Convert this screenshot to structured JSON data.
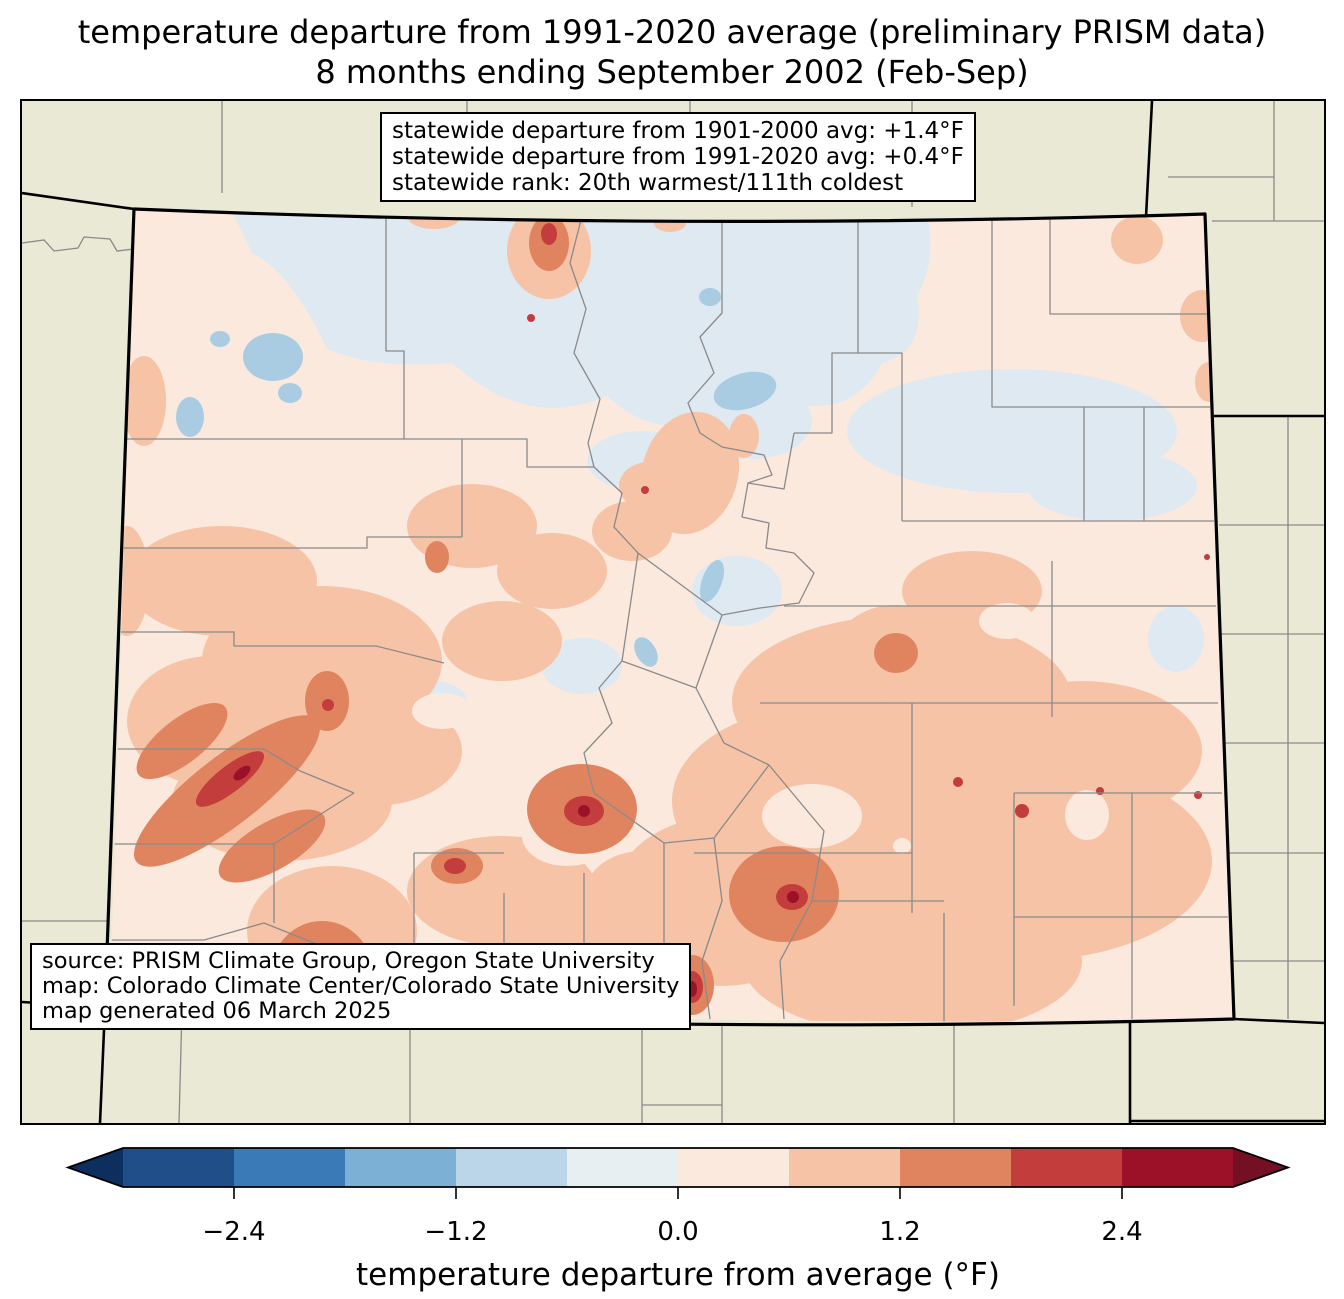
{
  "title": {
    "line1": "temperature departure from 1991-2020 average (preliminary PRISM data)",
    "line2": "8 months ending September 2002 (Feb-Sep)"
  },
  "stats_box": {
    "line1": "statewide departure from 1901-2000 avg: +1.4°F",
    "line2": "statewide departure from 1991-2020 avg: +0.4°F",
    "line3": "statewide rank: 20th warmest/111th coldest"
  },
  "source_box": {
    "line1": "source: PRISM Climate Group, Oregon State University",
    "line2": "map: Colorado Climate Center/Colorado State University",
    "line3": "map generated 06 March 2025"
  },
  "colorbar": {
    "label": "temperature departure from average (°F)",
    "tick_labels": [
      "−2.4",
      "−1.2",
      "0.0",
      "1.2",
      "2.4"
    ],
    "tick_values": [
      -2.4,
      -1.2,
      0.0,
      1.2,
      2.4
    ],
    "range_min": -3.0,
    "range_max": 3.0,
    "step": 0.6,
    "segment_colors": [
      "#1f4e88",
      "#3a7ab6",
      "#7db0d5",
      "#bad6e8",
      "#e7eff3",
      "#fbe9dd",
      "#f6c3a7",
      "#e0845f",
      "#c33d3c",
      "#9c1127"
    ],
    "under_color": "#0d2f5f",
    "over_color": "#731024"
  },
  "map": {
    "region": "Colorado",
    "legend_units": "°F departure from average"
  },
  "colors": {
    "map_bg": "#e9e9d6",
    "state_base": "#fbe9dd",
    "cool_light": "#dfe9f2",
    "cool_mid": "#a9cce3",
    "warm_1": "#f6c3a7",
    "warm_2": "#e0845f",
    "warm_3": "#c33d3c",
    "warm_4": "#9c1127",
    "county_line": "#8a8a8a",
    "state_border": "#000000"
  }
}
